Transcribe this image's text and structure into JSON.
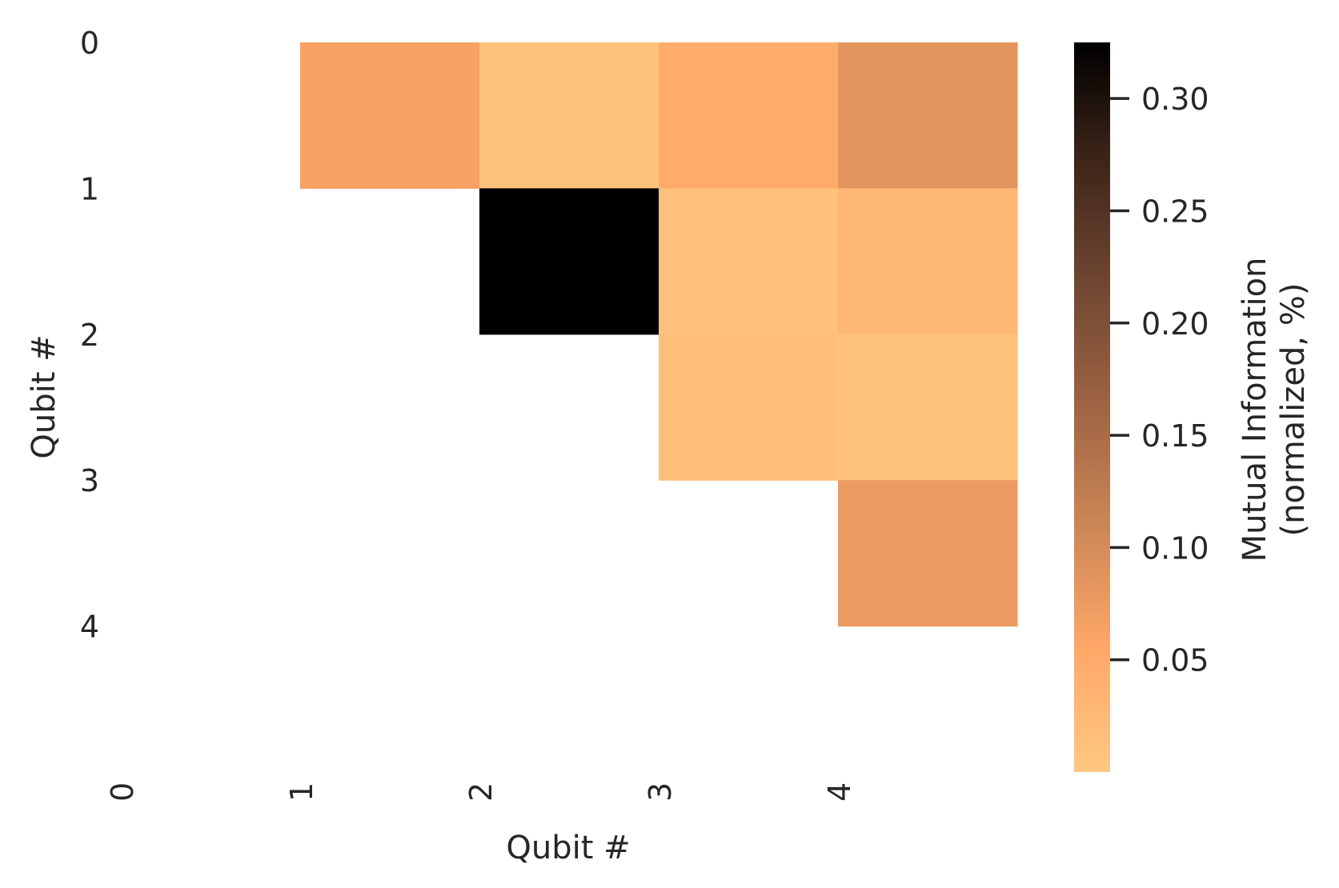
{
  "chart_data": {
    "type": "heatmap",
    "title": "",
    "xlabel": "Qubit #",
    "ylabel": "Qubit #",
    "x_tick_labels": [
      "0",
      "1",
      "2",
      "3",
      "4"
    ],
    "y_tick_labels": [
      "0",
      "1",
      "2",
      "3",
      "4"
    ],
    "colorbar_label": "Mutual Information\n(normalized, %)",
    "colorbar_ticks": [
      "0.05",
      "0.10",
      "0.15",
      "0.20",
      "0.25",
      "0.30"
    ],
    "colorbar_range": [
      0.0,
      0.325
    ],
    "colormap": "copper_r",
    "colormap_stops": [
      "#ffc882",
      "#ffa868",
      "#cd8756",
      "#9f6443",
      "#704732",
      "#3f2619",
      "#000000"
    ],
    "cells": [
      {
        "row": 0,
        "col": 1,
        "value": 0.062
      },
      {
        "row": 0,
        "col": 2,
        "value": 0.008
      },
      {
        "row": 0,
        "col": 3,
        "value": 0.048
      },
      {
        "row": 0,
        "col": 4,
        "value": 0.085
      },
      {
        "row": 1,
        "col": 2,
        "value": 0.325
      },
      {
        "row": 1,
        "col": 3,
        "value": 0.012
      },
      {
        "row": 1,
        "col": 4,
        "value": 0.028
      },
      {
        "row": 2,
        "col": 3,
        "value": 0.016
      },
      {
        "row": 2,
        "col": 4,
        "value": 0.008
      },
      {
        "row": 3,
        "col": 4,
        "value": 0.075
      }
    ]
  }
}
